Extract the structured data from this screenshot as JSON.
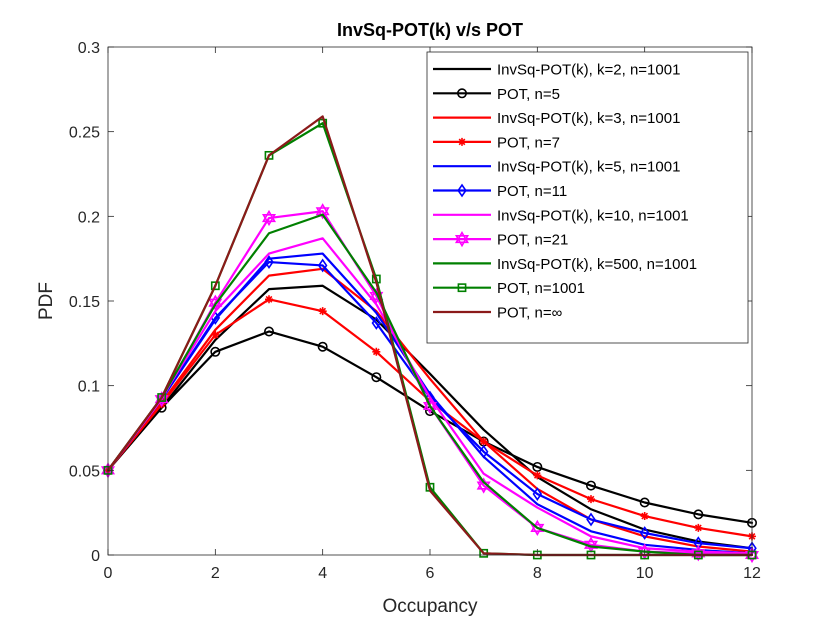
{
  "chart_data": {
    "type": "line",
    "title": "InvSq-POT(k) v/s POT",
    "xlabel": "Occupancy",
    "ylabel": "PDF",
    "xlim": [
      0,
      12
    ],
    "ylim": [
      0,
      0.3
    ],
    "xticks": [
      0,
      2,
      4,
      6,
      8,
      10,
      12
    ],
    "yticks": [
      0,
      0.05,
      0.1,
      0.15,
      0.2,
      0.25,
      0.3
    ],
    "xtick_labels": [
      "0",
      "2",
      "4",
      "6",
      "8",
      "10",
      "12"
    ],
    "ytick_labels": [
      "0",
      "0.05",
      "0.1",
      "0.15",
      "0.2",
      "0.25",
      "0.3"
    ],
    "grid": false,
    "legend_position": "top-right",
    "x": [
      0,
      1,
      2,
      3,
      4,
      5,
      6,
      7,
      8,
      9,
      10,
      11,
      12
    ],
    "series": [
      {
        "name": "InvSq-POT(k), k=2, n=1001",
        "color": "#000000",
        "marker": "none",
        "values": [
          0.05,
          0.087,
          0.127,
          0.157,
          0.159,
          0.139,
          0.107,
          0.074,
          0.046,
          0.027,
          0.015,
          0.008,
          0.004
        ]
      },
      {
        "name": "POT, n=5",
        "color": "#000000",
        "marker": "circle",
        "values": [
          0.05,
          0.087,
          0.12,
          0.132,
          0.123,
          0.105,
          0.085,
          0.067,
          0.052,
          0.041,
          0.031,
          0.024,
          0.019
        ]
      },
      {
        "name": "InvSq-POT(k), k=3, n=1001",
        "color": "#ff0000",
        "marker": "none",
        "values": [
          0.05,
          0.09,
          0.133,
          0.165,
          0.169,
          0.144,
          0.104,
          0.067,
          0.039,
          0.021,
          0.011,
          0.005,
          0.002
        ]
      },
      {
        "name": "POT, n=7",
        "color": "#ff0000",
        "marker": "asterisk",
        "values": [
          0.05,
          0.089,
          0.13,
          0.151,
          0.144,
          0.12,
          0.091,
          0.067,
          0.047,
          0.033,
          0.023,
          0.016,
          0.011
        ]
      },
      {
        "name": "InvSq-POT(k), k=5, n=1001",
        "color": "#0000ff",
        "marker": "none",
        "values": [
          0.05,
          0.092,
          0.139,
          0.175,
          0.178,
          0.143,
          0.095,
          0.058,
          0.03,
          0.014,
          0.006,
          0.003,
          0.001
        ]
      },
      {
        "name": "POT, n=11",
        "color": "#0000ff",
        "marker": "diamond",
        "values": [
          0.05,
          0.092,
          0.14,
          0.173,
          0.171,
          0.137,
          0.093,
          0.061,
          0.036,
          0.021,
          0.013,
          0.007,
          0.004
        ]
      },
      {
        "name": "InvSq-POT(k), k=10, n=1001",
        "color": "#ff00ff",
        "marker": "none",
        "values": [
          0.05,
          0.093,
          0.144,
          0.178,
          0.187,
          0.148,
          0.093,
          0.048,
          0.028,
          0.011,
          0.004,
          0.002,
          0.001
        ]
      },
      {
        "name": "POT, n=21",
        "color": "#ff00ff",
        "marker": "hexagram",
        "values": [
          0.05,
          0.092,
          0.149,
          0.199,
          0.203,
          0.153,
          0.088,
          0.041,
          0.016,
          0.006,
          0.002,
          0.001,
          0.0
        ]
      },
      {
        "name": "InvSq-POT(k), k=500, n=1001",
        "color": "#008000",
        "marker": "none",
        "values": [
          0.05,
          0.093,
          0.148,
          0.19,
          0.201,
          0.155,
          0.088,
          0.043,
          0.016,
          0.005,
          0.002,
          0.0,
          0.0
        ]
      },
      {
        "name": "POT, n=1001",
        "color": "#008000",
        "marker": "square",
        "values": [
          0.05,
          0.093,
          0.159,
          0.236,
          0.255,
          0.163,
          0.04,
          0.001,
          0.0,
          0.0,
          0.0,
          0.0,
          0.0
        ]
      },
      {
        "name": "POT, n=∞",
        "color": "#8b1a1a",
        "marker": "none",
        "values": [
          0.05,
          0.093,
          0.159,
          0.236,
          0.259,
          0.161,
          0.038,
          0.001,
          0.0,
          0.0,
          0.0,
          0.0,
          0.0
        ]
      }
    ]
  }
}
